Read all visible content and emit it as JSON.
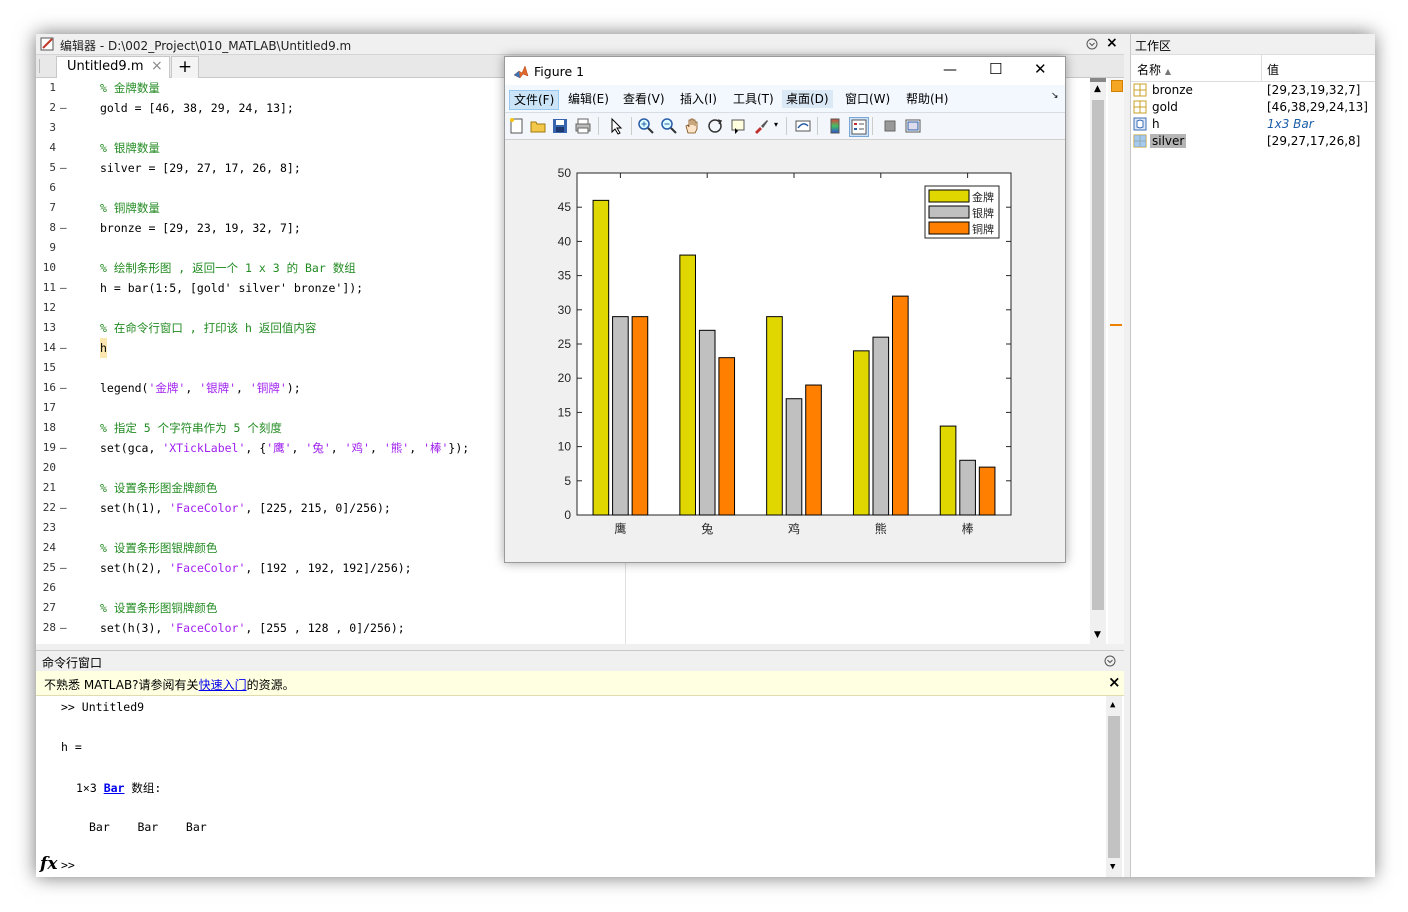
{
  "editor": {
    "title": "编辑器 - D:\\002_Project\\010_MATLAB\\Untitled9.m",
    "tab_label": "Untitled9.m",
    "add_tab_label": "+",
    "lines": [
      {
        "n": "1",
        "dash": "",
        "text": "% 金牌数量",
        "type": "comment"
      },
      {
        "n": "2",
        "dash": "—",
        "text": "gold = [46, 38, 29, 24, 13];",
        "type": "code"
      },
      {
        "n": "3",
        "dash": "",
        "text": "",
        "type": "code"
      },
      {
        "n": "4",
        "dash": "",
        "text": "% 银牌数量",
        "type": "comment"
      },
      {
        "n": "5",
        "dash": "—",
        "text": "silver = [29, 27, 17, 26, 8];",
        "type": "code"
      },
      {
        "n": "6",
        "dash": "",
        "text": "",
        "type": "code"
      },
      {
        "n": "7",
        "dash": "",
        "text": "% 铜牌数量",
        "type": "comment"
      },
      {
        "n": "8",
        "dash": "—",
        "text": "bronze = [29, 23, 19, 32, 7];",
        "type": "code"
      },
      {
        "n": "9",
        "dash": "",
        "text": "",
        "type": "code"
      },
      {
        "n": "10",
        "dash": "",
        "text": "% 绘制条形图 , 返回一个 1 x 3 的 Bar 数组",
        "type": "comment"
      },
      {
        "n": "11",
        "dash": "—",
        "text": "h = bar(1:5, [gold' silver' bronze']);",
        "type": "code"
      },
      {
        "n": "12",
        "dash": "",
        "text": "",
        "type": "code"
      },
      {
        "n": "13",
        "dash": "",
        "text": "% 在命令行窗口 , 打印该 h 返回值内容",
        "type": "comment"
      },
      {
        "n": "14",
        "dash": "—",
        "text": "h",
        "type": "code"
      },
      {
        "n": "15",
        "dash": "",
        "text": "",
        "type": "code"
      },
      {
        "n": "16",
        "dash": "—",
        "text": "legend('金牌', '银牌', '铜牌');",
        "type": "code"
      },
      {
        "n": "17",
        "dash": "",
        "text": "",
        "type": "code"
      },
      {
        "n": "18",
        "dash": "",
        "text": "% 指定 5 个字符串作为 5 个刻度",
        "type": "comment"
      },
      {
        "n": "19",
        "dash": "—",
        "text": "set(gca, 'XTickLabel', {'鹰', '兔', '鸡', '熊', '棒'});",
        "type": "code"
      },
      {
        "n": "20",
        "dash": "",
        "text": "",
        "type": "code"
      },
      {
        "n": "21",
        "dash": "",
        "text": "% 设置条形图金牌颜色",
        "type": "comment"
      },
      {
        "n": "22",
        "dash": "—",
        "text": "set(h(1), 'FaceColor', [225, 215, 0]/256);",
        "type": "code"
      },
      {
        "n": "23",
        "dash": "",
        "text": "",
        "type": "code"
      },
      {
        "n": "24",
        "dash": "",
        "text": "% 设置条形图银牌颜色",
        "type": "comment"
      },
      {
        "n": "25",
        "dash": "—",
        "text": "set(h(2), 'FaceColor', [192 , 192, 192]/256);",
        "type": "code"
      },
      {
        "n": "26",
        "dash": "",
        "text": "",
        "type": "code"
      },
      {
        "n": "27",
        "dash": "",
        "text": "% 设置条形图铜牌颜色",
        "type": "comment"
      },
      {
        "n": "28",
        "dash": "—",
        "text": "set(h(3), 'FaceColor', [255 , 128 , 0]/256);",
        "type": "code"
      }
    ]
  },
  "workspace": {
    "title": "工作区",
    "col_name": "名称",
    "col_value": "值",
    "rows": [
      {
        "name": "bronze",
        "value": "[29,23,19,32,7]",
        "icon": "matrix-icon",
        "selected": false,
        "italic": false
      },
      {
        "name": "gold",
        "value": "[46,38,29,24,13]",
        "icon": "matrix-icon",
        "selected": false,
        "italic": false
      },
      {
        "name": "h",
        "value": "1x3 Bar",
        "icon": "object-icon",
        "selected": false,
        "italic": true
      },
      {
        "name": "silver",
        "value": "[29,27,17,26,8]",
        "icon": "matrix-icon",
        "selected": true,
        "italic": false
      }
    ]
  },
  "command": {
    "title": "命令行窗口",
    "notice_prefix": "不熟悉 MATLAB?请参阅有关",
    "notice_link": "快速入门",
    "notice_suffix": "的资源。",
    "line1": ">> Untitled9",
    "line2": "h =",
    "line3_prefix": "1×3 ",
    "line3_link": "Bar",
    "line3_suffix": " 数组:",
    "line4": "Bar    Bar    Bar",
    "prompt": ">>",
    "fx": "fx"
  },
  "figure": {
    "title": "Figure 1",
    "menus": [
      "文件(F)",
      "编辑(E)",
      "查看(V)",
      "插入(I)",
      "工具(T)",
      "桌面(D)",
      "窗口(W)",
      "帮助(H)"
    ],
    "minimize": "—",
    "maximize": "☐",
    "close": "✕"
  },
  "chart_data": {
    "type": "bar",
    "categories": [
      "鹰",
      "兔",
      "鸡",
      "熊",
      "棒"
    ],
    "series": [
      {
        "name": "金牌",
        "values": [
          46,
          38,
          29,
          24,
          13
        ],
        "color": "#e1d700"
      },
      {
        "name": "银牌",
        "values": [
          29,
          27,
          17,
          26,
          8
        ],
        "color": "#c0c0c0"
      },
      {
        "name": "铜牌",
        "values": [
          29,
          23,
          19,
          32,
          7
        ],
        "color": "#ff8000"
      }
    ],
    "ylim": [
      0,
      50
    ],
    "yticks": [
      "0",
      "5",
      "10",
      "15",
      "20",
      "25",
      "30",
      "35",
      "40",
      "45",
      "50"
    ],
    "legend_position": "top-right",
    "grid": false
  },
  "colors": {
    "comment": "#228b22",
    "string": "#a020f0",
    "link": "#0000ee"
  }
}
